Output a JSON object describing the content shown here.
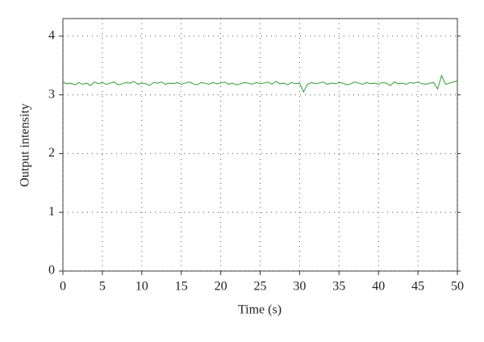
{
  "chart_data": {
    "type": "line",
    "xlabel": "Time (s)",
    "ylabel": "Output intensity",
    "x": [
      0,
      0.5,
      1,
      1.5,
      2,
      2.5,
      3,
      3.5,
      4,
      4.5,
      5,
      5.5,
      6,
      6.5,
      7,
      7.5,
      8,
      8.5,
      9,
      9.5,
      10,
      10.5,
      11,
      11.5,
      12,
      12.5,
      13,
      13.5,
      14,
      14.5,
      15,
      15.5,
      16,
      16.5,
      17,
      17.5,
      18,
      18.5,
      19,
      19.5,
      20,
      20.5,
      21,
      21.5,
      22,
      22.5,
      23,
      23.5,
      24,
      24.5,
      25,
      25.5,
      26,
      26.5,
      27,
      27.5,
      28,
      28.5,
      29,
      29.5,
      30,
      30.5,
      31,
      31.5,
      32,
      32.5,
      33,
      33.5,
      34,
      34.5,
      35,
      35.5,
      36,
      36.5,
      37,
      37.5,
      38,
      38.5,
      39,
      39.5,
      40,
      40.5,
      41,
      41.5,
      42,
      42.5,
      43,
      43.5,
      44,
      44.5,
      45,
      45.5,
      46,
      46.5,
      47,
      47.5,
      48,
      48.5,
      49,
      49.5,
      50
    ],
    "series": [
      {
        "color": "#2ca02c",
        "values": [
          3.22,
          3.19,
          3.2,
          3.17,
          3.21,
          3.18,
          3.2,
          3.16,
          3.22,
          3.19,
          3.21,
          3.18,
          3.2,
          3.22,
          3.17,
          3.19,
          3.21,
          3.2,
          3.23,
          3.18,
          3.2,
          3.19,
          3.16,
          3.21,
          3.2,
          3.22,
          3.18,
          3.2,
          3.19,
          3.21,
          3.18,
          3.2,
          3.22,
          3.19,
          3.17,
          3.21,
          3.2,
          3.18,
          3.21,
          3.19,
          3.2,
          3.22,
          3.18,
          3.2,
          3.17,
          3.19,
          3.21,
          3.2,
          3.18,
          3.21,
          3.19,
          3.2,
          3.22,
          3.18,
          3.23,
          3.19,
          3.2,
          3.17,
          3.21,
          3.19,
          3.2,
          3.05,
          3.18,
          3.21,
          3.19,
          3.2,
          3.22,
          3.18,
          3.2,
          3.19,
          3.21,
          3.2,
          3.17,
          3.19,
          3.22,
          3.2,
          3.18,
          3.21,
          3.19,
          3.2,
          3.18,
          3.21,
          3.2,
          3.16,
          3.22,
          3.19,
          3.2,
          3.18,
          3.21,
          3.2,
          3.22,
          3.19,
          3.18,
          3.2,
          3.21,
          3.1,
          3.33,
          3.18,
          3.2,
          3.22,
          3.24
        ]
      }
    ],
    "xlim": [
      0,
      50
    ],
    "xticks": [
      0,
      5,
      10,
      15,
      20,
      25,
      30,
      35,
      40,
      45,
      50
    ],
    "ylim": [
      0,
      4.3
    ],
    "yticks": [
      0,
      1,
      2,
      3,
      4
    ],
    "grid": true
  }
}
